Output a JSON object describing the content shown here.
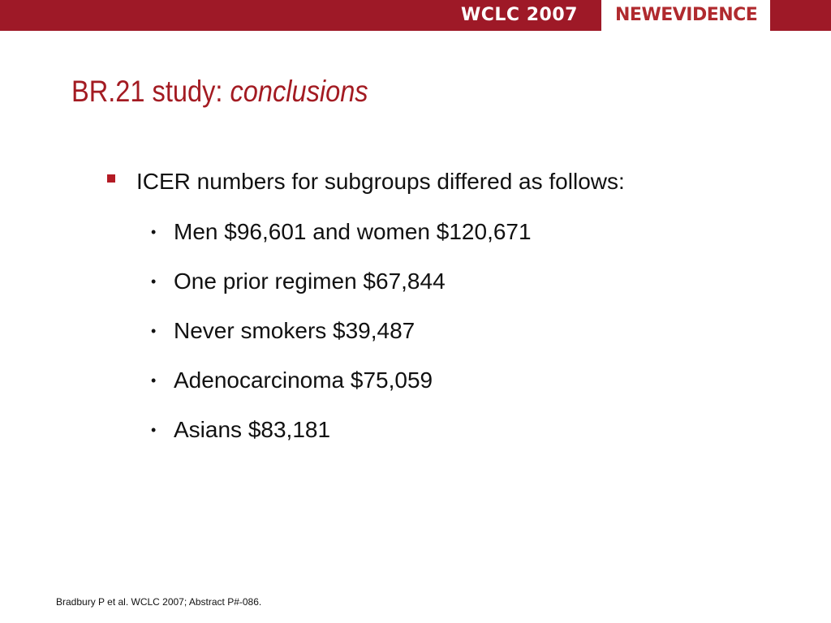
{
  "header": {
    "conference": "WCLC 2007",
    "logo_text": "NEWEVIDENCE"
  },
  "slide": {
    "title_main": "BR.21 study: ",
    "title_emphasis": "conclusions",
    "bullet": "ICER numbers for subgroups differed as follows:",
    "sub_bullets": [
      "Men $96,601 and women $120,671",
      "One prior regimen $67,844",
      "Never smokers $39,487",
      "Adenocarcinoma $75,059",
      "Asians $83,181"
    ],
    "sub_marker": "•"
  },
  "footer": {
    "citation": "Bradbury P et al. WCLC 2007; Abstract P#-086."
  },
  "colors": {
    "brand_red": "#9e1927",
    "title_red": "#a31b22"
  }
}
